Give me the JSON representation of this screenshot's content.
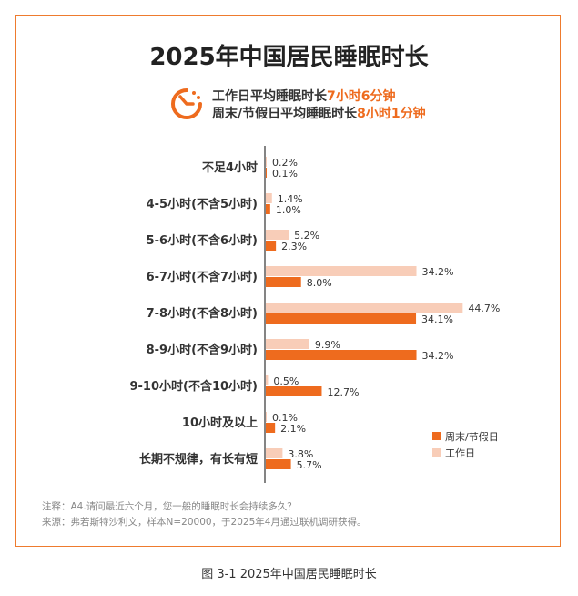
{
  "title": "2025年中国居民睡眠时长",
  "summary": {
    "workday_label": "工作日平均睡眠时长",
    "workday_value": "7小时6分钟",
    "weekend_label": "周末/节假日平均睡眠时长",
    "weekend_value": "8小时1分钟",
    "icon": "clock-icon"
  },
  "chart_data": {
    "type": "bar",
    "orientation": "horizontal",
    "categories": [
      "不足4小时",
      "4-5小时(不含5小时)",
      "5-6小时(不含6小时)",
      "6-7小时(不含7小时)",
      "7-8小时(不含8小时)",
      "8-9小时(不含9小时)",
      "9-10小时(不含10小时)",
      "10小时及以上",
      "长期不规律，有长有短"
    ],
    "series": [
      {
        "name": "工作日",
        "color": "#F8CDB8",
        "values": [
          0.2,
          1.4,
          5.2,
          34.2,
          44.7,
          9.9,
          0.5,
          0.1,
          3.8
        ]
      },
      {
        "name": "周末/节假日",
        "color": "#EE6B1E",
        "values": [
          0.1,
          1.0,
          2.3,
          8.0,
          34.1,
          34.2,
          12.7,
          2.1,
          5.7
        ]
      }
    ],
    "value_suffix": "%",
    "legend": "bottom-right",
    "legend_order": [
      "周末/节假日",
      "工作日"
    ],
    "grid": false
  },
  "notes": [
    "注释：A4.请问最近六个月，您一般的睡眠时长会持续多久？",
    "来源：弗若斯特沙利文，样本N=20000，于2025年4月通过联机调研获得。"
  ],
  "caption": "图 3-1 2025年中国居民睡眠时长"
}
